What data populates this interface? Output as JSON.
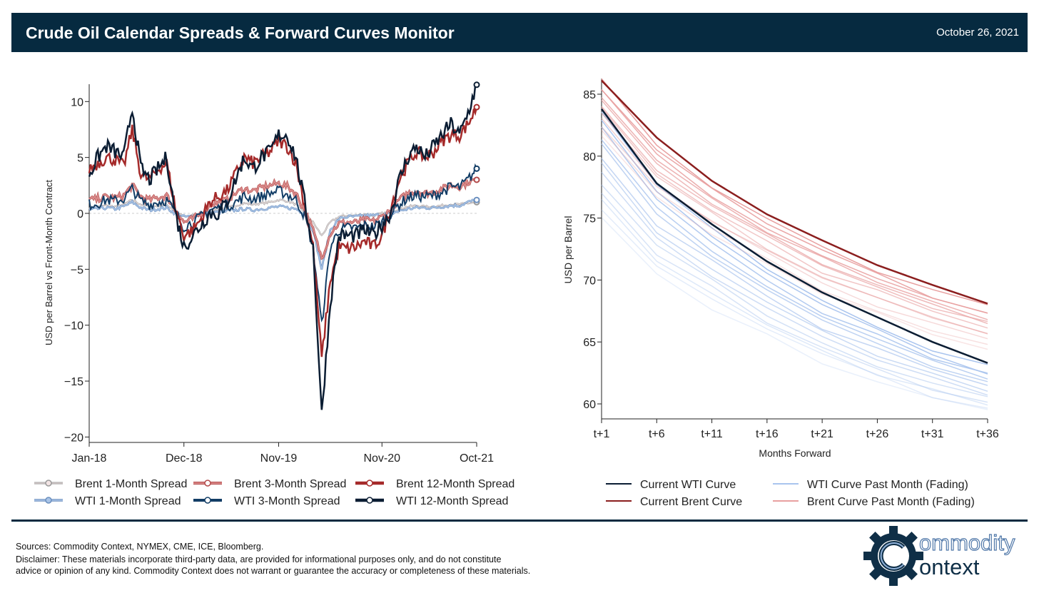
{
  "header": {
    "title": "Crude Oil Calendar Spreads & Forward Curves Monitor",
    "date": "October 26, 2021"
  },
  "footer": {
    "sources": "Sources: Commodity Context, NYMEX, CME, ICE, Bloomberg.",
    "disclaimer1": "Disclaimer: These materials incorporate third-party data, are provided for informational purposes only, and do not constitute",
    "disclaimer2": "advice or opinion of any kind. Commodity Context does not warrant or guarantee the accuracy or completeness of these materials.",
    "logo": "Commodity Context"
  },
  "chart_data": [
    {
      "type": "line",
      "title": "",
      "xlabel": "",
      "ylabel": "USD per Barrel vs Front-Month Contract",
      "ylim": [
        -20,
        12
      ],
      "yticks": [
        "10",
        "5",
        "0",
        "−5",
        "−10",
        "−15",
        "−20"
      ],
      "ytick_values": [
        10,
        5,
        0,
        -5,
        -10,
        -15,
        -20
      ],
      "xticks": [
        "Jan-18",
        "Dec-18",
        "Nov-19",
        "Nov-20",
        "Oct-21"
      ],
      "xtick_months": [
        0,
        11,
        22,
        34,
        45
      ],
      "x_note": "monthly points, month 0 = Jan-18",
      "series": [
        {
          "name": "Brent 1-Month Spread",
          "color": "#f2e4e4",
          "edge": "#999",
          "width": 1,
          "values": [
            0.5,
            0.6,
            0.7,
            0.6,
            0.8,
            1.2,
            0.8,
            0.6,
            0.7,
            0.8,
            0.2,
            -0.3,
            -0.2,
            0,
            0.3,
            0.4,
            0.5,
            0.7,
            0.9,
            0.8,
            0.9,
            1.0,
            1.2,
            1.1,
            0.8,
            0.1,
            -0.8,
            -2,
            -0.8,
            -0.3,
            -0.2,
            -0.2,
            -0.1,
            -0.2,
            0,
            0.1,
            0.4,
            0.6,
            0.7,
            0.6,
            0.6,
            0.7,
            0.8,
            0.8,
            0.9,
            1.0
          ]
        },
        {
          "name": "WTI 1-Month Spread",
          "color": "#a9c4e6",
          "edge": "#6b8fbf",
          "width": 1.5,
          "values": [
            0.3,
            0.4,
            0.5,
            0.4,
            0.6,
            1.0,
            0.5,
            0.3,
            0.4,
            0.5,
            0,
            -0.3,
            -0.3,
            -0.1,
            0.1,
            0.1,
            0.2,
            0.3,
            0.4,
            0.3,
            0.4,
            0.5,
            0.6,
            0.5,
            0.4,
            0,
            -1.5,
            -5,
            -1.5,
            -0.5,
            -0.3,
            -0.3,
            -0.2,
            -0.2,
            -0.1,
            0,
            0.2,
            0.4,
            0.5,
            0.5,
            0.5,
            0.6,
            0.7,
            0.7,
            1.0,
            1.2
          ]
        },
        {
          "name": "Brent 3-Month Spread",
          "color": "#d98a8a",
          "edge": "#b34a4a",
          "width": 2,
          "values": [
            1.2,
            1.3,
            1.5,
            1.4,
            1.6,
            2.5,
            1.5,
            1.2,
            1.4,
            1.6,
            0.3,
            -0.8,
            -0.5,
            0,
            0.8,
            1.0,
            1.2,
            1.8,
            2.2,
            2.0,
            2.3,
            2.5,
            2.7,
            2.4,
            1.8,
            0.3,
            -1.5,
            -4,
            -1.8,
            -0.9,
            -0.8,
            -0.8,
            -0.6,
            -0.7,
            -0.3,
            0.3,
            1.2,
            1.8,
            2.0,
            1.8,
            1.9,
            2.2,
            2.5,
            2.4,
            2.8,
            3.0
          ]
        },
        {
          "name": "WTI 3-Month Spread",
          "color": "#123d66",
          "edge": "#123d66",
          "width": 2,
          "values": [
            0.8,
            0.9,
            1.2,
            1.1,
            1.3,
            2.2,
            1.1,
            0.8,
            1.0,
            1.2,
            0,
            -1.2,
            -0.8,
            -0.3,
            0.3,
            0.5,
            0.6,
            1.0,
            1.5,
            1.3,
            1.5,
            1.8,
            2.0,
            1.7,
            1.2,
            -0.2,
            -3,
            -10,
            -3,
            -1.5,
            -1.3,
            -1.3,
            -1.1,
            -1.2,
            -0.8,
            0,
            0.8,
            1.4,
            1.6,
            1.5,
            1.6,
            1.9,
            2.4,
            2.3,
            3.0,
            4.0
          ]
        },
        {
          "name": "Brent 12-Month Spread",
          "color": "#a52a2a",
          "edge": "#a52a2a",
          "width": 2.5,
          "values": [
            4.0,
            4.5,
            5.0,
            4.8,
            4.2,
            7.5,
            3.5,
            3.0,
            4.0,
            4.5,
            0.5,
            -2,
            -1.5,
            -0.5,
            1.0,
            1.5,
            2.0,
            3.5,
            5.0,
            4.5,
            5.0,
            5.5,
            6.5,
            6.0,
            4.5,
            0.8,
            -3,
            -13,
            -6,
            -3,
            -3.2,
            -3,
            -2.5,
            -3,
            -2,
            0.5,
            3.0,
            4.5,
            5.5,
            5.0,
            5.5,
            6.5,
            7.0,
            7.0,
            8.0,
            9.5
          ]
        },
        {
          "name": "WTI 12-Month Spread",
          "color": "#0b1d33",
          "edge": "#0b1d33",
          "width": 2.5,
          "values": [
            3.5,
            5.0,
            6.0,
            5.5,
            5.0,
            9.5,
            4.0,
            3.0,
            4.0,
            5.0,
            0,
            -3,
            -2,
            -1,
            0,
            0,
            1.0,
            3.0,
            5.0,
            4.0,
            5.0,
            5.5,
            7.0,
            7.0,
            5.0,
            1.0,
            -3,
            -18,
            -8,
            -2,
            -2,
            -2,
            -1.5,
            -2,
            -1,
            0,
            3.0,
            5.0,
            6.0,
            5.0,
            6.0,
            7.0,
            8.0,
            7.0,
            9.0,
            11.5
          ]
        }
      ]
    },
    {
      "type": "line",
      "title": "",
      "xlabel": "Months Forward",
      "ylabel": "USD per Barrel",
      "ylim": [
        59,
        86.5
      ],
      "yticks": [
        "85",
        "80",
        "75",
        "70",
        "65",
        "60"
      ],
      "ytick_values": [
        85,
        80,
        75,
        70,
        65,
        60
      ],
      "xticks": [
        "t+1",
        "t+6",
        "t+11",
        "t+16",
        "t+21",
        "t+26",
        "t+31",
        "t+36"
      ],
      "xtick_values": [
        1,
        6,
        11,
        16,
        21,
        26,
        31,
        36
      ],
      "series": [
        {
          "name": "Current WTI Curve",
          "color": "#0b1d33",
          "values": [
            83.8,
            77.8,
            74.5,
            71.5,
            69.0,
            67.0,
            65.0,
            63.3
          ]
        },
        {
          "name": "Current Brent Curve",
          "color": "#8b1e1e",
          "values": [
            86.1,
            81.5,
            78.0,
            75.3,
            73.2,
            71.2,
            69.6,
            68.1
          ]
        },
        {
          "name": "WTI Curve Past Month (Fading)",
          "color": "#a9c4ee",
          "starts": [
            83.5,
            82.8,
            82.2,
            81.5,
            80.8,
            80,
            79.3,
            78.6,
            77.9,
            77.2,
            76.5,
            75.8,
            75.1
          ],
          "ends": [
            63.0,
            62.6,
            62.3,
            62.0,
            61.6,
            61.3,
            61,
            60.7,
            60.4,
            60.1,
            59.8,
            59.6,
            59.3
          ]
        },
        {
          "name": "Brent Curve Past Month (Fading)",
          "color": "#e8a0a0",
          "starts": [
            86.0,
            85.6,
            85.2,
            84.9,
            84.5,
            84.1,
            83.7,
            83.3,
            82.9,
            82.5,
            82.1,
            81.7
          ],
          "ends": [
            67.8,
            67.5,
            67.2,
            67.0,
            66.7,
            66.5,
            66.2,
            65.9,
            65.6,
            65.3,
            64.9,
            64.5
          ]
        }
      ]
    }
  ]
}
